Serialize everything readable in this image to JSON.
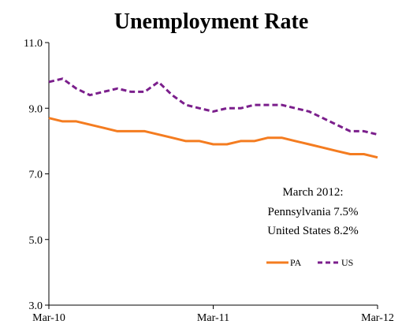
{
  "chart_data": {
    "type": "line",
    "title": "Unemployment Rate",
    "xlabel": "",
    "ylabel": "",
    "ylim": [
      3.0,
      11.0
    ],
    "yticks": [
      "3.0",
      "5.0",
      "7.0",
      "9.0",
      "11.0"
    ],
    "xticks": [
      "Mar-10",
      "Mar-11",
      "Mar-12"
    ],
    "x": [
      "2010-03",
      "2010-04",
      "2010-05",
      "2010-06",
      "2010-07",
      "2010-08",
      "2010-09",
      "2010-10",
      "2010-11",
      "2010-12",
      "2011-01",
      "2011-02",
      "2011-03",
      "2011-04",
      "2011-05",
      "2011-06",
      "2011-07",
      "2011-08",
      "2011-09",
      "2011-10",
      "2011-11",
      "2011-12",
      "2012-01",
      "2012-02",
      "2012-03"
    ],
    "series": [
      {
        "name": "PA",
        "color": "#f47c20",
        "style": "solid",
        "values": [
          8.7,
          8.6,
          8.6,
          8.5,
          8.4,
          8.3,
          8.3,
          8.3,
          8.2,
          8.1,
          8.0,
          8.0,
          7.9,
          7.9,
          8.0,
          8.0,
          8.1,
          8.1,
          8.0,
          7.9,
          7.8,
          7.7,
          7.6,
          7.6,
          7.5
        ]
      },
      {
        "name": "US",
        "color": "#7b1f8c",
        "style": "dashed",
        "values": [
          9.8,
          9.9,
          9.6,
          9.4,
          9.5,
          9.6,
          9.5,
          9.5,
          9.8,
          9.4,
          9.1,
          9.0,
          8.9,
          9.0,
          9.0,
          9.1,
          9.1,
          9.1,
          9.0,
          8.9,
          8.7,
          8.5,
          8.3,
          8.3,
          8.2
        ]
      }
    ],
    "annotation": [
      "March 2012:",
      "Pennsylvania 7.5%",
      "United States 8.2%"
    ],
    "legend": "bottom-right, inside plot",
    "grid": false
  }
}
